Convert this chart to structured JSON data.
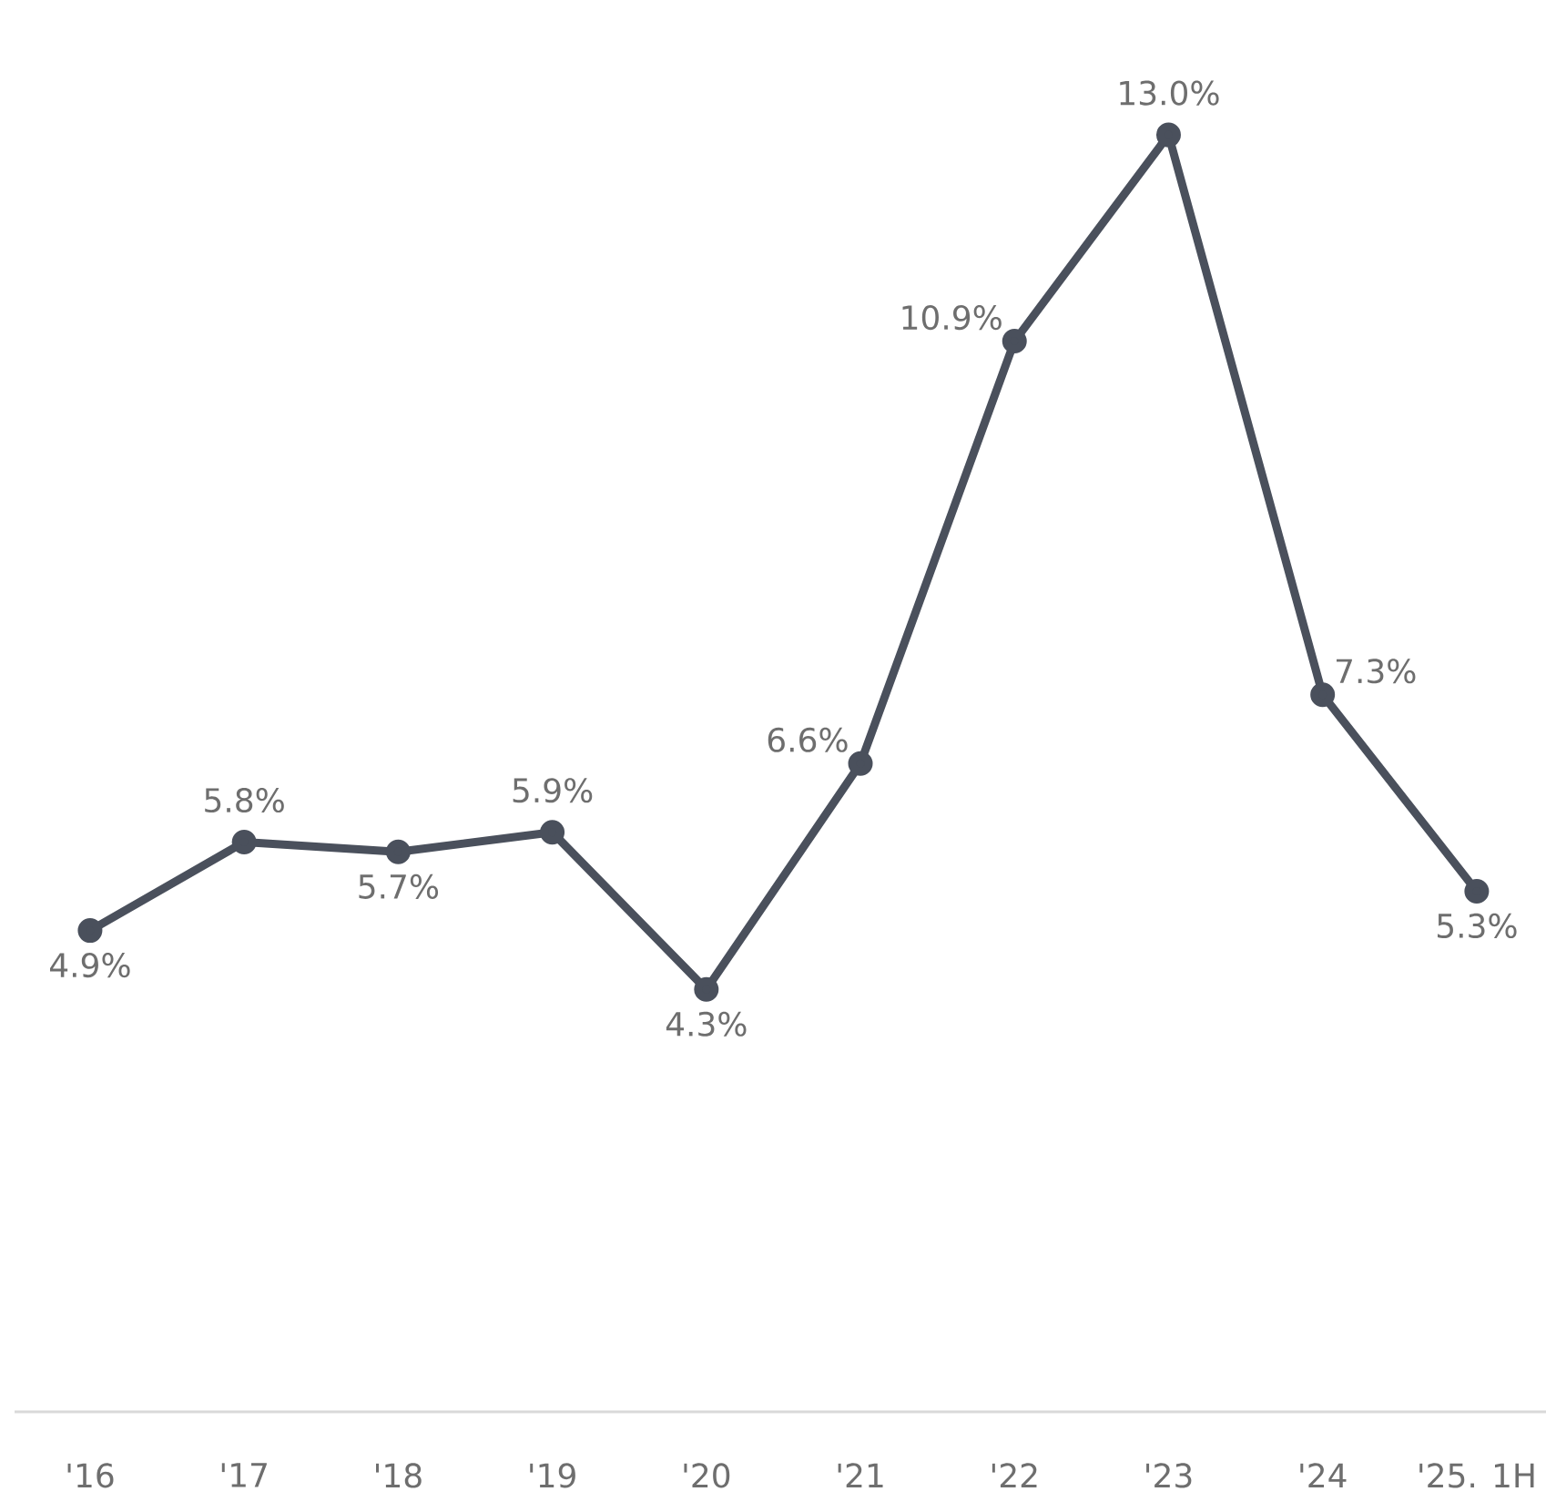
{
  "chart_data": {
    "type": "line",
    "categories": [
      "'16",
      "'17",
      "'18",
      "'19",
      "'20",
      "'21",
      "'22",
      "'23",
      "'24",
      "'25. 1H"
    ],
    "values": [
      4.9,
      5.8,
      5.7,
      5.9,
      4.3,
      6.6,
      10.9,
      13.0,
      7.3,
      5.3
    ],
    "value_labels": [
      "4.9%",
      "5.8%",
      "5.7%",
      "5.9%",
      "4.3%",
      "6.6%",
      "10.9%",
      "13.0%",
      "7.3%",
      "5.3%"
    ],
    "color": "#4a505c",
    "marker": "circle",
    "line_style": "solid",
    "tick_labels": "x"
  }
}
